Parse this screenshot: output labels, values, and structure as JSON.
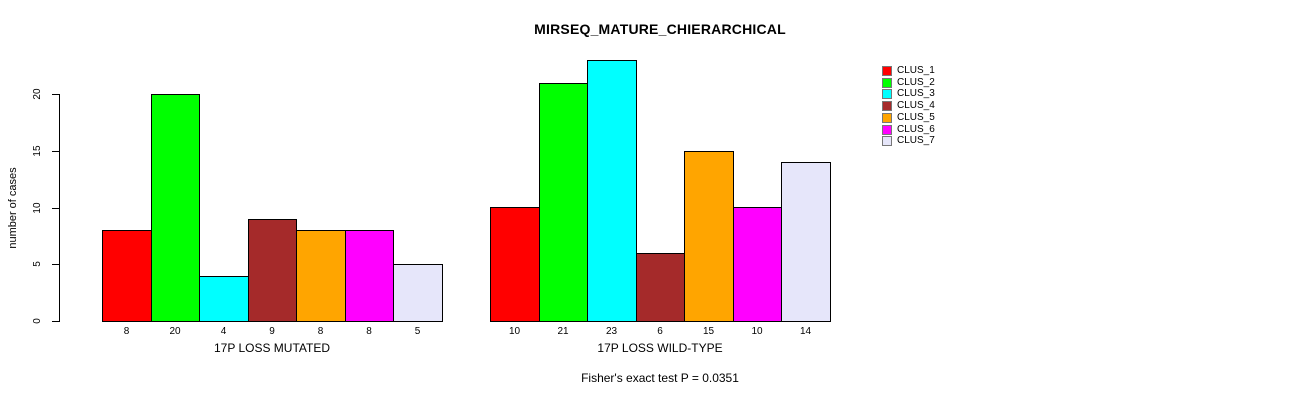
{
  "chart_data": {
    "type": "bar",
    "title": "MIRSEQ_MATURE_CHIERARCHICAL",
    "ylabel": "number of cases",
    "xlabel": "",
    "yticks": [
      0,
      5,
      10,
      15,
      20
    ],
    "ylim": [
      0,
      23
    ],
    "grid": false,
    "legend_position": "right-outside",
    "bar_value_labels_shown": true,
    "categories": [
      "17P LOSS MUTATED",
      "17P LOSS WILD-TYPE"
    ],
    "series": [
      {
        "name": "CLUS_1",
        "color": "#FF0000",
        "values": [
          8,
          10
        ]
      },
      {
        "name": "CLUS_2",
        "color": "#00FF00",
        "values": [
          20,
          21
        ]
      },
      {
        "name": "CLUS_3",
        "color": "#00FFFF",
        "values": [
          4,
          23
        ]
      },
      {
        "name": "CLUS_4",
        "color": "#A52A2A",
        "values": [
          9,
          6
        ]
      },
      {
        "name": "CLUS_5",
        "color": "#FFA500",
        "values": [
          8,
          15
        ]
      },
      {
        "name": "CLUS_6",
        "color": "#FF00FF",
        "values": [
          8,
          10
        ]
      },
      {
        "name": "CLUS_7",
        "color": "#E6E6FA",
        "values": [
          5,
          14
        ]
      }
    ],
    "footnote": "Fisher's exact test P = 0.0351",
    "axis_color": "#000000",
    "background_color": "#FFFFFF"
  }
}
